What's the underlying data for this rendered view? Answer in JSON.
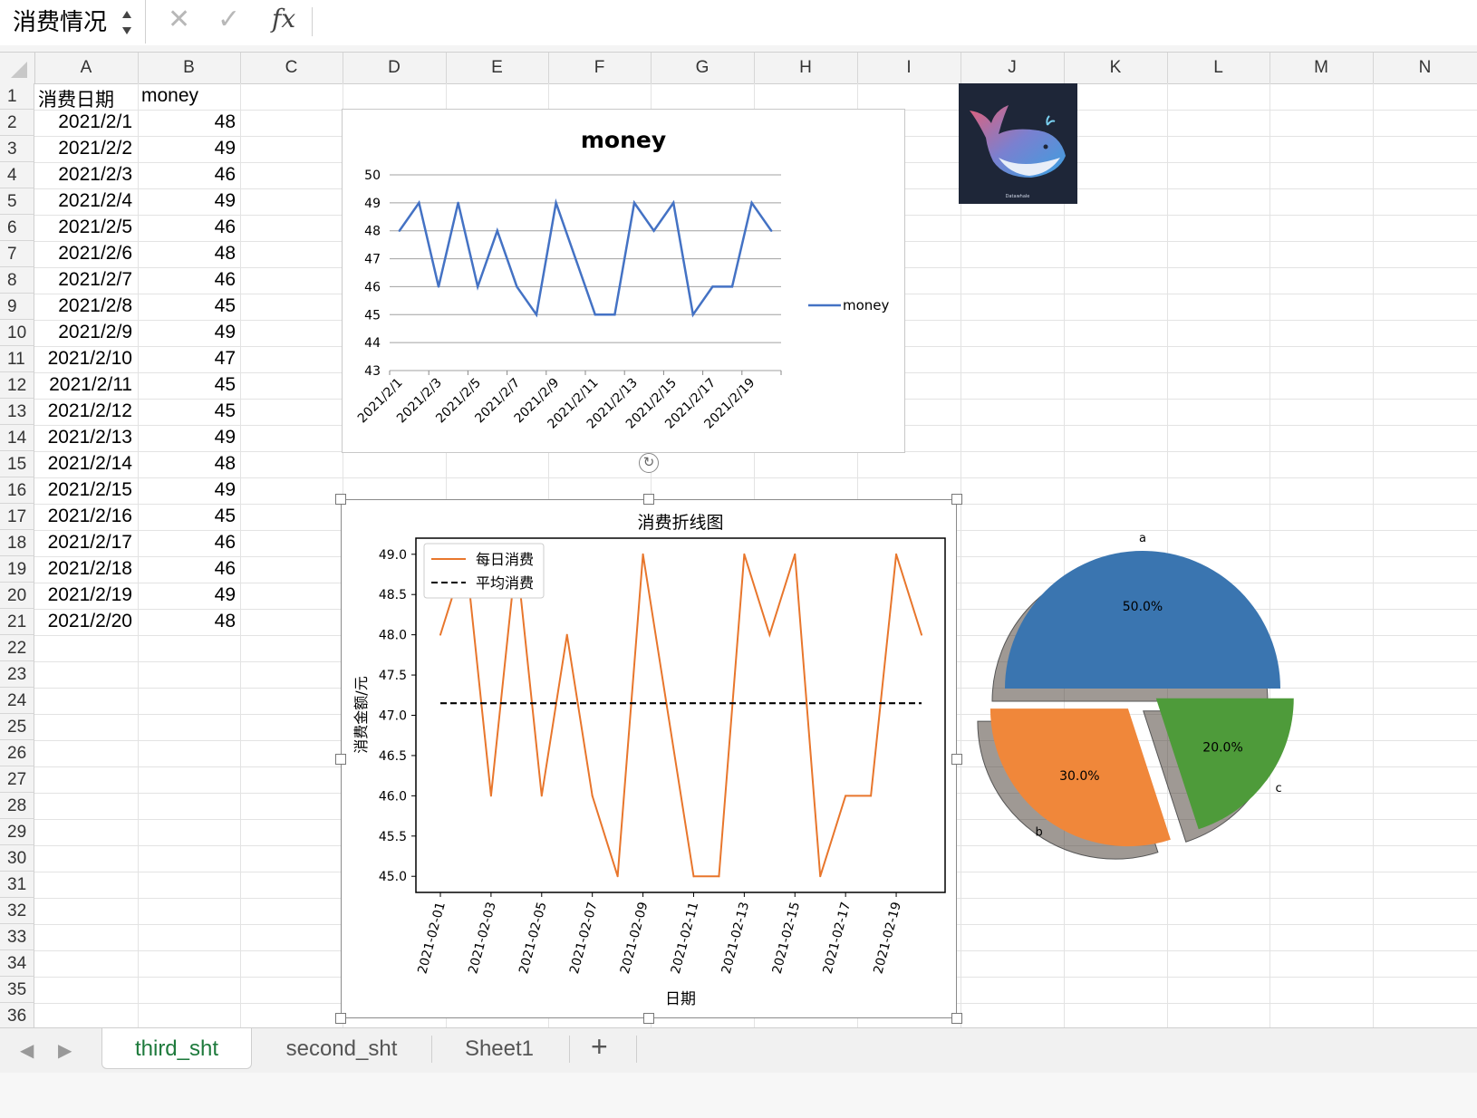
{
  "formula_bar": {
    "name_box": "消费情况",
    "cancel_icon": "✕",
    "enter_icon": "✓",
    "fx_label": "fx",
    "formula": ""
  },
  "columns": [
    "A",
    "B",
    "C",
    "D",
    "E",
    "F",
    "G",
    "H",
    "I",
    "J",
    "K",
    "L",
    "M",
    "N"
  ],
  "rows": [
    "1",
    "2",
    "3",
    "4",
    "5",
    "6",
    "7",
    "8",
    "9",
    "10",
    "11",
    "12",
    "13",
    "14",
    "15",
    "16",
    "17",
    "18",
    "19",
    "20",
    "21",
    "22",
    "23",
    "24",
    "25",
    "26",
    "27",
    "28",
    "29",
    "30",
    "31",
    "32",
    "33",
    "34",
    "35",
    "36"
  ],
  "table": {
    "header_date": "消费日期",
    "header_money": "money",
    "dates": [
      "2021/2/1",
      "2021/2/2",
      "2021/2/3",
      "2021/2/4",
      "2021/2/5",
      "2021/2/6",
      "2021/2/7",
      "2021/2/8",
      "2021/2/9",
      "2021/2/10",
      "2021/2/11",
      "2021/2/12",
      "2021/2/13",
      "2021/2/14",
      "2021/2/15",
      "2021/2/16",
      "2021/2/17",
      "2021/2/18",
      "2021/2/19",
      "2021/2/20"
    ],
    "money": [
      48,
      49,
      46,
      49,
      46,
      48,
      46,
      45,
      49,
      47,
      45,
      45,
      49,
      48,
      49,
      45,
      46,
      46,
      49,
      48
    ]
  },
  "logo": {
    "text": "Datawhale"
  },
  "chart_data": [
    {
      "type": "line",
      "title": "money",
      "x": [
        "2021/2/1",
        "2021/2/2",
        "2021/2/3",
        "2021/2/4",
        "2021/2/5",
        "2021/2/6",
        "2021/2/7",
        "2021/2/8",
        "2021/2/9",
        "2021/2/10",
        "2021/2/11",
        "2021/2/12",
        "2021/2/13",
        "2021/2/14",
        "2021/2/15",
        "2021/2/16",
        "2021/2/17",
        "2021/2/18",
        "2021/2/19",
        "2021/2/20"
      ],
      "x_tick_labels": [
        "2021/2/1",
        "2021/2/3",
        "2021/2/5",
        "2021/2/7",
        "2021/2/9",
        "2021/2/11",
        "2021/2/13",
        "2021/2/15",
        "2021/2/17",
        "2021/2/19"
      ],
      "series": [
        {
          "name": "money",
          "values": [
            48,
            49,
            46,
            49,
            46,
            48,
            46,
            45,
            49,
            47,
            45,
            45,
            49,
            48,
            49,
            45,
            46,
            46,
            49,
            48
          ],
          "color": "#4472c4"
        }
      ],
      "ylim": [
        43,
        50
      ],
      "y_ticks": [
        43,
        44,
        45,
        46,
        47,
        48,
        49,
        50
      ],
      "grid": true,
      "legend": "right"
    },
    {
      "type": "line",
      "title": "消费折线图",
      "xlabel": "日期",
      "ylabel": "消费金额/元",
      "x": [
        "2021-02-01",
        "2021-02-02",
        "2021-02-03",
        "2021-02-04",
        "2021-02-05",
        "2021-02-06",
        "2021-02-07",
        "2021-02-08",
        "2021-02-09",
        "2021-02-10",
        "2021-02-11",
        "2021-02-12",
        "2021-02-13",
        "2021-02-14",
        "2021-02-15",
        "2021-02-16",
        "2021-02-17",
        "2021-02-18",
        "2021-02-19",
        "2021-02-20"
      ],
      "x_tick_labels": [
        "2021-02-01",
        "2021-02-03",
        "2021-02-05",
        "2021-02-07",
        "2021-02-09",
        "2021-02-11",
        "2021-02-13",
        "2021-02-15",
        "2021-02-17",
        "2021-02-19"
      ],
      "series": [
        {
          "name": "每日消费",
          "values": [
            48,
            49,
            46,
            49,
            46,
            48,
            46,
            45,
            49,
            47,
            45,
            45,
            49,
            48,
            49,
            45,
            46,
            46,
            49,
            48
          ],
          "color": "#e8762c",
          "style": "solid"
        },
        {
          "name": "平均消费",
          "values": [
            47.15,
            47.15,
            47.15,
            47.15,
            47.15,
            47.15,
            47.15,
            47.15,
            47.15,
            47.15,
            47.15,
            47.15,
            47.15,
            47.15,
            47.15,
            47.15,
            47.15,
            47.15,
            47.15,
            47.15
          ],
          "color": "#000000",
          "style": "dashed"
        }
      ],
      "y_tick_labels": [
        "45.0",
        "45.5",
        "46.0",
        "46.5",
        "47.0",
        "47.5",
        "48.0",
        "48.5",
        "49.0"
      ],
      "y_ticks": [
        45.0,
        45.5,
        46.0,
        46.5,
        47.0,
        47.5,
        48.0,
        48.5,
        49.0
      ],
      "ylim": [
        44.8,
        49.2
      ],
      "grid": false,
      "legend": "upper-left"
    },
    {
      "type": "pie",
      "categories": [
        "a",
        "b",
        "c"
      ],
      "values": [
        50.0,
        30.0,
        20.0
      ],
      "value_labels": [
        "50.0%",
        "30.0%",
        "20.0%"
      ],
      "colors": [
        "#3a75b0",
        "#f0873a",
        "#4e9b3a"
      ],
      "exploded": true,
      "shadow": true
    }
  ],
  "sheet_tabs": {
    "prev_icon": "◀",
    "next_icon": "▶",
    "tabs": [
      "third_sht",
      "second_sht",
      "Sheet1"
    ],
    "active": "third_sht",
    "add_icon": "+"
  }
}
